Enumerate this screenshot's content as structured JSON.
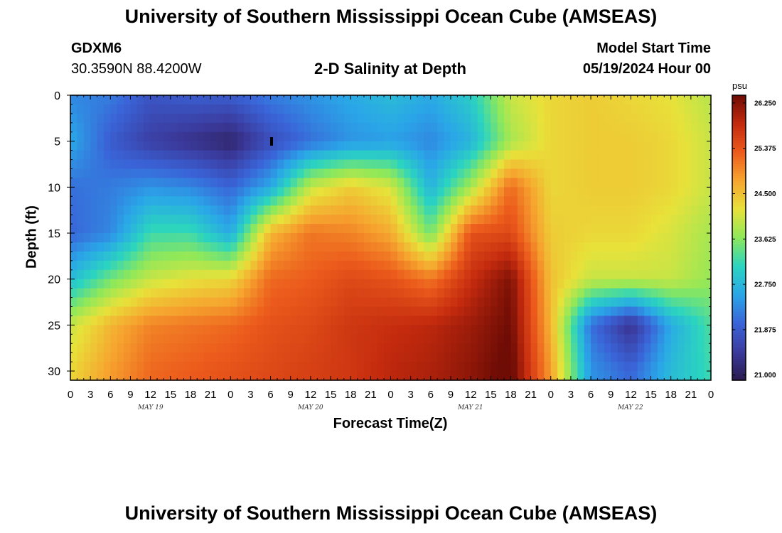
{
  "page": {
    "title_top": "University of Southern Mississippi Ocean Cube (AMSEAS)",
    "title_bottom": "University of Southern Mississippi Ocean Cube (AMSEAS)",
    "station_id": "GDXM6",
    "station_coords": "30.3590N  88.4200W",
    "model_start_label": "Model Start Time",
    "model_start_value": "05/19/2024 Hour 00"
  },
  "colors": {
    "background": "#ffffff",
    "colormap": [
      "#2a1a4e",
      "#3b3b9e",
      "#3a64d8",
      "#2aa6e8",
      "#2bd4c0",
      "#8ee85a",
      "#e8e23a",
      "#f6a52f",
      "#ec5b1c",
      "#c32a0e",
      "#6e0c05"
    ]
  },
  "chart_data": {
    "type": "heatmap",
    "title": "2-D Salinity at Depth",
    "xlabel": "Forecast Time(Z)",
    "ylabel": "Depth (ft)",
    "x_range_hours": [
      0,
      96
    ],
    "x_tick_labels": [
      "0",
      "3",
      "6",
      "9",
      "12",
      "15",
      "18",
      "21",
      "0",
      "3",
      "6",
      "9",
      "12",
      "15",
      "18",
      "21",
      "0",
      "3",
      "6",
      "9",
      "12",
      "15",
      "18",
      "21",
      "0",
      "3",
      "6",
      "9",
      "12",
      "15",
      "18",
      "21",
      "0"
    ],
    "day_labels": [
      "MAY 19",
      "MAY 20",
      "MAY 21",
      "MAY 22"
    ],
    "ylim": [
      0,
      31
    ],
    "y_ticks": [
      0,
      5,
      10,
      15,
      20,
      25,
      30
    ],
    "colorbar": {
      "unit": "psu",
      "min": 20.9,
      "max": 26.4,
      "tick_values": [
        21.0,
        21.875,
        22.75,
        23.625,
        24.5,
        25.375,
        26.25
      ],
      "tick_labels": [
        "21.000",
        "21.875",
        "22.750",
        "23.625",
        "24.500",
        "25.375",
        "26.250"
      ]
    },
    "grid_hours": [
      0,
      6,
      12,
      18,
      24,
      30,
      36,
      42,
      48,
      54,
      60,
      66,
      72,
      78,
      84,
      90,
      96
    ],
    "grid_depths_ft": [
      0,
      5,
      10,
      15,
      20,
      25,
      30
    ],
    "salinity_psu": [
      [
        22.3,
        22.2,
        21.8,
        21.9,
        21.9,
        22.2,
        22.4,
        22.6,
        22.8,
        22.6,
        23.0,
        24.0,
        24.3,
        24.4,
        24.3,
        24.2,
        23.9
      ],
      [
        22.6,
        21.9,
        21.5,
        21.3,
        21.1,
        21.7,
        22.1,
        22.4,
        22.5,
        22.3,
        22.7,
        23.8,
        24.3,
        24.4,
        24.4,
        24.3,
        24.0
      ],
      [
        22.1,
        22.2,
        22.4,
        22.3,
        22.0,
        22.6,
        24.0,
        24.4,
        24.1,
        22.7,
        23.8,
        25.2,
        24.3,
        24.4,
        24.4,
        24.3,
        24.0
      ],
      [
        22.0,
        22.3,
        23.2,
        23.2,
        22.6,
        24.6,
        25.1,
        25.0,
        24.7,
        23.5,
        25.4,
        25.5,
        24.4,
        24.3,
        24.3,
        24.1,
        23.8
      ],
      [
        22.8,
        23.5,
        24.0,
        24.2,
        24.3,
        25.2,
        25.3,
        25.5,
        25.4,
        25.1,
        25.8,
        26.3,
        24.5,
        24.0,
        24.0,
        24.0,
        23.7
      ],
      [
        24.0,
        24.6,
        25.0,
        25.1,
        25.2,
        25.4,
        25.5,
        25.7,
        25.8,
        25.9,
        26.1,
        26.4,
        24.6,
        22.1,
        21.3,
        22.6,
        23.3
      ],
      [
        24.3,
        24.8,
        25.2,
        25.3,
        25.4,
        25.5,
        25.6,
        25.7,
        25.9,
        26.0,
        26.2,
        26.5,
        24.8,
        22.4,
        22.0,
        22.8,
        23.2
      ]
    ]
  }
}
